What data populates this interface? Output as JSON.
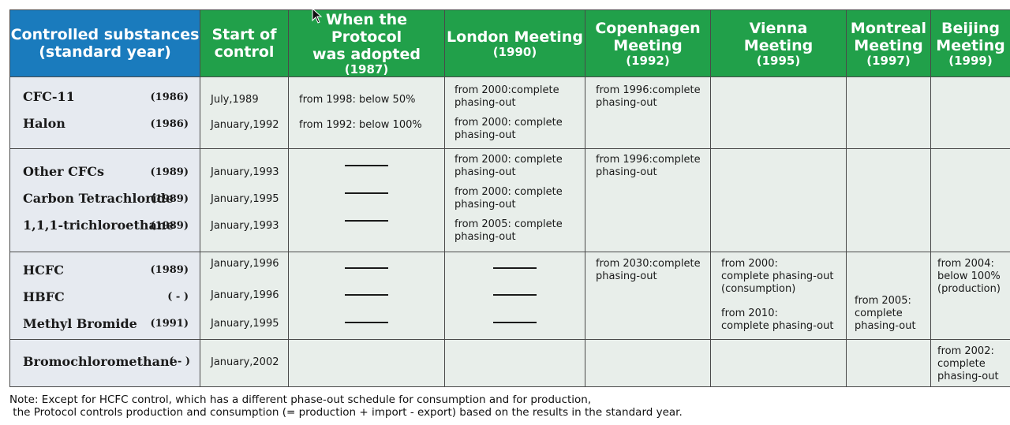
{
  "header": {
    "col1": {
      "line1": "Controlled substances",
      "line2": "(standard year)"
    },
    "col2": {
      "line1": "Start of",
      "line2": "control"
    },
    "col3": {
      "line1": "When the Protocol",
      "line2": "was adopted",
      "year": "(1987)"
    },
    "col4": {
      "line1": "London Meeting",
      "year": "(1990)"
    },
    "col5": {
      "line1": "Copenhagen",
      "line2": "Meeting",
      "year": "(1992)"
    },
    "col6": {
      "line1": "Vienna",
      "line2": "Meeting",
      "year": "(1995)"
    },
    "col7": {
      "line1": "Montreal",
      "line2": "Meeting",
      "year": "(1997)"
    },
    "col8": {
      "line1": "Beijing",
      "line2": "Meeting",
      "year": "(1999)"
    }
  },
  "groups": [
    {
      "substances": [
        {
          "name": "CFC-11",
          "year": "(1986)",
          "start": "July,1989",
          "adopted": "from 1998: below 50%",
          "london": "from 2000:complete\nphasing-out"
        },
        {
          "name": "Halon",
          "year": "(1986)",
          "start": "January,1992",
          "adopted": "from 1992: below 100%",
          "london": "from 2000: complete\nphasing-out"
        }
      ],
      "copenhagen": "from 1996:complete\nphasing-out"
    },
    {
      "substances": [
        {
          "name": "Other CFCs",
          "year": "(1989)",
          "start": "January,1993",
          "adopted": "—",
          "london": "from 2000: complete\nphasing-out"
        },
        {
          "name": "Carbon Tetrachloride",
          "year": "(1989)",
          "start": "January,1995",
          "adopted": "—",
          "london": "from 2000: complete\nphasing-out"
        },
        {
          "name": "1,1,1-trichloroethane",
          "year": "(1989)",
          "start": "January,1993",
          "adopted": "—",
          "london": "from 2005: complete\nphasing-out"
        }
      ],
      "copenhagen": "from 1996:complete\nphasing-out"
    },
    {
      "substances": [
        {
          "name": "HCFC",
          "year": "(1989)",
          "start": "January,1996",
          "adopted": "—",
          "london": "—"
        },
        {
          "name": "HBFC",
          "year": "( - )",
          "start": "January,1996",
          "adopted": "—",
          "london": "—"
        },
        {
          "name": "Methyl Bromide",
          "year": "(1991)",
          "start": "January,1995",
          "adopted": "—",
          "london": "—"
        }
      ],
      "copenhagen": "from 2030:complete\nphasing-out",
      "vienna_1": "from 2000:\ncomplete phasing-out\n (consumption)",
      "vienna_2": "from 2010:\ncomplete phasing-out",
      "montreal": "from 2005:\ncomplete\nphasing-out",
      "beijing": "from 2004:\nbelow 100%\n (production)"
    },
    {
      "substances": [
        {
          "name": "Bromochloromethane",
          "year": "( - )",
          "start": "January,2002"
        }
      ],
      "beijing": "from 2002:\ncomplete\nphasing-out"
    }
  ],
  "note": {
    "line1": "Note: Except for HCFC control, which has a different phase-out schedule for consumption and for production,",
    "line2": " the Protocol controls production and consumption (= production + import - export) based on the results in the standard year."
  },
  "colors": {
    "header_blue": "#1a7bbd",
    "header_green": "#21a04a",
    "cell_bg": "#e8eeea"
  }
}
